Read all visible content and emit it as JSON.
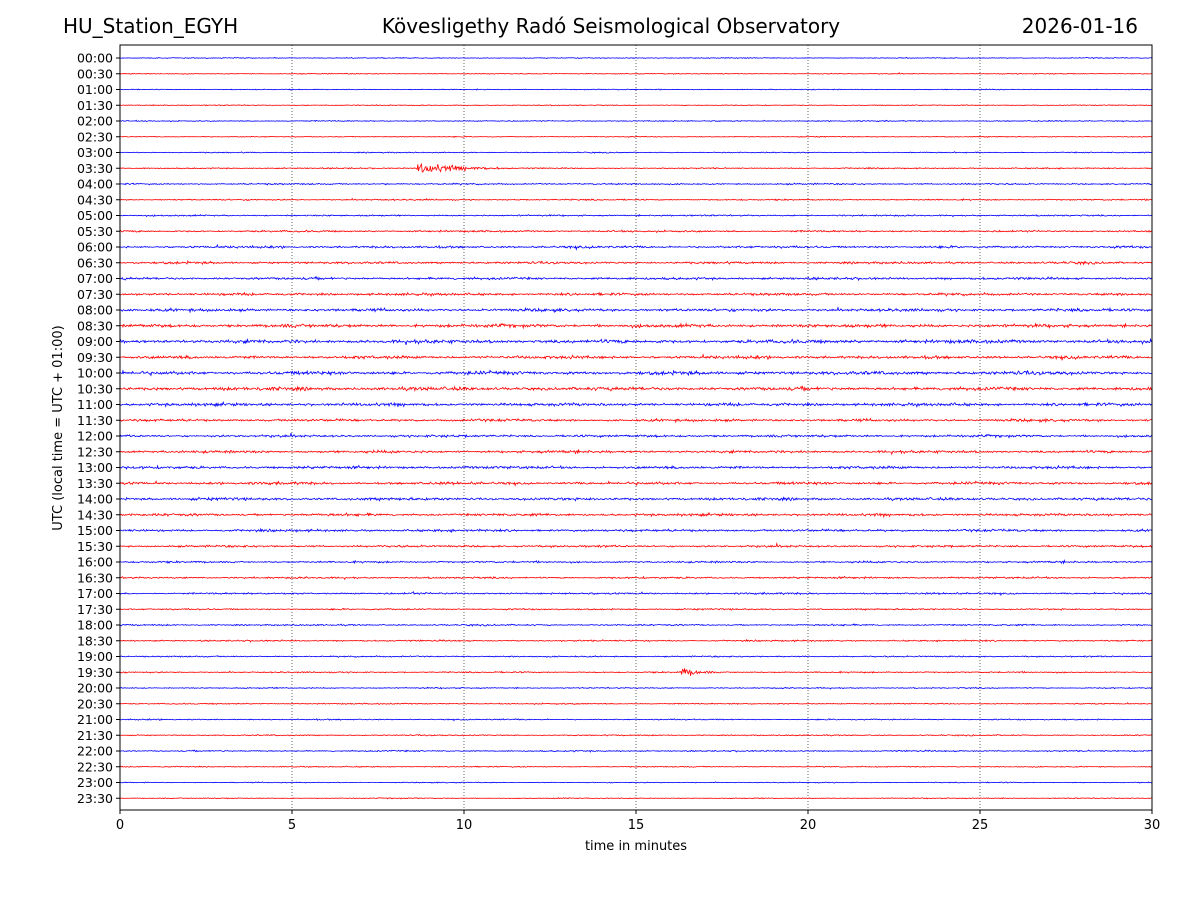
{
  "header": {
    "station": "HU_Station_EGYH",
    "observatory": "Kövesligethy Radó Seismological Observatory",
    "date": "2026-01-16"
  },
  "chart_data": {
    "type": "line",
    "title": "Kövesligethy Radó Seismological Observatory",
    "xlabel": "time in minutes",
    "ylabel": "UTC (local time = UTC + 01:00)",
    "xlim": [
      0,
      30
    ],
    "x_ticks": [
      0,
      5,
      10,
      15,
      20,
      25,
      30
    ],
    "x_tick_labels": [
      "0",
      "5",
      "10",
      "15",
      "20",
      "25",
      "30"
    ],
    "grid": "vertical dotted lines at every 5 minutes",
    "row_labels": [
      "00:00",
      "00:30",
      "01:00",
      "01:30",
      "02:00",
      "02:30",
      "03:00",
      "03:30",
      "04:00",
      "04:30",
      "05:00",
      "05:30",
      "06:00",
      "06:30",
      "07:00",
      "07:30",
      "08:00",
      "08:30",
      "09:00",
      "09:30",
      "10:00",
      "10:30",
      "11:00",
      "11:30",
      "12:00",
      "12:30",
      "13:00",
      "13:30",
      "14:00",
      "14:30",
      "15:00",
      "15:30",
      "16:00",
      "16:30",
      "17:00",
      "17:30",
      "18:00",
      "18:30",
      "19:00",
      "19:30",
      "20:00",
      "20:30",
      "21:00",
      "21:30",
      "22:00",
      "22:30",
      "23:00",
      "23:30"
    ],
    "trace_colors": [
      "#0000ff",
      "#ff0000"
    ],
    "row_noise_level": [
      0.6,
      0.6,
      0.6,
      0.6,
      0.7,
      0.6,
      0.7,
      0.8,
      1.0,
      0.9,
      1.0,
      1.2,
      1.5,
      1.5,
      1.6,
      1.7,
      1.9,
      2.2,
      2.3,
      2.0,
      2.3,
      2.3,
      2.0,
      1.7,
      1.6,
      1.7,
      1.8,
      1.8,
      1.8,
      1.7,
      1.6,
      1.4,
      1.2,
      1.2,
      1.2,
      1.0,
      1.0,
      1.0,
      0.9,
      0.9,
      0.8,
      0.8,
      0.8,
      0.8,
      0.9,
      0.7,
      0.6,
      0.6
    ],
    "events": [
      {
        "time": "03:30",
        "x": 8.6,
        "amplitude": 11,
        "duration": 4.5,
        "kind": "regional earthquake"
      },
      {
        "time": "19:30",
        "x": 16.3,
        "amplitude": 9,
        "duration": 1.8,
        "kind": "local event"
      },
      {
        "time": "06:30",
        "x": 28.0,
        "amplitude": 7,
        "duration": 0.15,
        "kind": "spike"
      },
      {
        "time": "17:00",
        "x": 8.5,
        "amplitude": 6,
        "duration": 0.3,
        "kind": "spike"
      },
      {
        "time": "17:30",
        "x": 26.7,
        "amplitude": 5,
        "duration": 0.1,
        "kind": "spike"
      },
      {
        "time": "18:30",
        "x": 22.5,
        "amplitude": 5,
        "duration": 0.2,
        "kind": "spike"
      },
      {
        "time": "15:30",
        "x": 15.7,
        "amplitude": 4,
        "duration": 0.2,
        "kind": "spike"
      },
      {
        "time": "04:30",
        "x": 8.9,
        "amplitude": 4,
        "duration": 0.15,
        "kind": "spike"
      },
      {
        "time": "05:00",
        "x": 2.4,
        "amplitude": 3,
        "duration": 0.2,
        "kind": "spike"
      },
      {
        "time": "04:00",
        "x": 7.7,
        "amplitude": 3,
        "duration": 0.3,
        "kind": "spike"
      },
      {
        "time": "16:00",
        "x": 25.4,
        "amplitude": 3,
        "duration": 0.2,
        "kind": "spike"
      },
      {
        "time": "15:00",
        "x": 13.0,
        "amplitude": 3,
        "duration": 0.3,
        "kind": "spike"
      },
      {
        "time": "08:30",
        "x": 22.0,
        "amplitude": 3,
        "duration": 0.3,
        "kind": "spike"
      },
      {
        "time": "10:00",
        "x": 26.0,
        "amplitude": 3,
        "duration": 1.0,
        "kind": "noise burst"
      },
      {
        "time": "10:30",
        "x": 1.0,
        "amplitude": 3,
        "duration": 2.5,
        "kind": "noise burst"
      }
    ]
  }
}
